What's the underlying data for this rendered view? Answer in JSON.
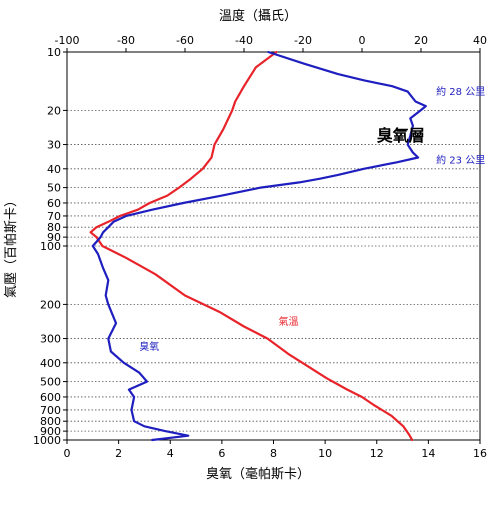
{
  "chart_data": {
    "type": "line",
    "top_axis": {
      "title": "溫度（攝氏）",
      "range": [
        -100,
        40
      ],
      "ticks": [
        -100,
        -80,
        -60,
        -40,
        -20,
        0,
        20,
        40
      ]
    },
    "bottom_axis": {
      "title": "臭氧（毫帕斯卡）",
      "range": [
        0,
        16
      ],
      "ticks": [
        0,
        2,
        4,
        6,
        8,
        10,
        12,
        14,
        16
      ]
    },
    "left_axis": {
      "title": "氣壓（百帕斯卡）",
      "scale": "log",
      "inverted": true,
      "range": [
        10,
        1000
      ],
      "ticks": [
        10,
        20,
        30,
        40,
        50,
        60,
        70,
        80,
        90,
        100,
        200,
        300,
        400,
        500,
        600,
        700,
        800,
        900,
        1000
      ]
    },
    "grid": "horizontal dotted lines at pressure ticks",
    "series": [
      {
        "name": "氣溫",
        "color": "#e8232a",
        "x_axis": "top",
        "points": [
          [
            -29,
            10
          ],
          [
            -36,
            12
          ],
          [
            -40,
            15
          ],
          [
            -43,
            18
          ],
          [
            -44,
            20
          ],
          [
            -47,
            25
          ],
          [
            -50,
            30
          ],
          [
            -51,
            35
          ],
          [
            -54,
            40
          ],
          [
            -58,
            45
          ],
          [
            -62,
            50
          ],
          [
            -66,
            55
          ],
          [
            -72,
            60
          ],
          [
            -76,
            65
          ],
          [
            -82,
            70
          ],
          [
            -86,
            75
          ],
          [
            -90,
            80
          ],
          [
            -92,
            85
          ],
          [
            -90,
            90
          ],
          [
            -88,
            100
          ],
          [
            -80,
            115
          ],
          [
            -70,
            140
          ],
          [
            -60,
            180
          ],
          [
            -48,
            220
          ],
          [
            -40,
            260
          ],
          [
            -32,
            300
          ],
          [
            -25,
            360
          ],
          [
            -18,
            420
          ],
          [
            -12,
            480
          ],
          [
            -5,
            550
          ],
          [
            0,
            600
          ],
          [
            4,
            660
          ],
          [
            10,
            750
          ],
          [
            14,
            850
          ],
          [
            16,
            940
          ],
          [
            17,
            1000
          ]
        ]
      },
      {
        "name": "臭氧",
        "color": "#1f1fbf",
        "x_axis": "bottom",
        "points": [
          [
            7.8,
            10
          ],
          [
            9.2,
            11.5
          ],
          [
            10.5,
            13
          ],
          [
            11.5,
            14
          ],
          [
            12.6,
            15
          ],
          [
            13.2,
            16
          ],
          [
            13.5,
            18
          ],
          [
            13.9,
            19
          ],
          [
            13.7,
            20
          ],
          [
            13.3,
            22
          ],
          [
            13.4,
            24
          ],
          [
            13.3,
            27
          ],
          [
            13.2,
            30
          ],
          [
            13.4,
            33
          ],
          [
            13.6,
            35
          ],
          [
            12.8,
            37
          ],
          [
            11.5,
            40
          ],
          [
            10.5,
            43
          ],
          [
            9.8,
            45
          ],
          [
            9.0,
            47
          ],
          [
            7.5,
            50
          ],
          [
            6.0,
            55
          ],
          [
            4.5,
            60
          ],
          [
            3.3,
            65
          ],
          [
            2.3,
            70
          ],
          [
            1.8,
            75
          ],
          [
            1.6,
            80
          ],
          [
            1.4,
            85
          ],
          [
            1.3,
            90
          ],
          [
            1.0,
            100
          ],
          [
            1.2,
            110
          ],
          [
            1.4,
            130
          ],
          [
            1.6,
            150
          ],
          [
            1.5,
            180
          ],
          [
            1.6,
            200
          ],
          [
            1.9,
            250
          ],
          [
            1.6,
            300
          ],
          [
            1.7,
            350
          ],
          [
            2.2,
            400
          ],
          [
            2.8,
            450
          ],
          [
            3.1,
            500
          ],
          [
            2.4,
            550
          ],
          [
            2.6,
            600
          ],
          [
            2.5,
            700
          ],
          [
            2.6,
            800
          ],
          [
            3.0,
            850
          ],
          [
            3.8,
            900
          ],
          [
            4.7,
            950
          ],
          [
            3.3,
            1000
          ]
        ]
      }
    ],
    "annotations": [
      {
        "text": "臭氧層",
        "x_ozone": 12.0,
        "p": 27,
        "size": "large",
        "color": "#000000"
      },
      {
        "text": "約 28 公里",
        "x_ozone": 14.3,
        "p": 16,
        "size": "small",
        "color": "#1f1fbf"
      },
      {
        "text": "約 23 公里",
        "x_ozone": 14.3,
        "p": 36,
        "size": "small",
        "color": "#1f1fbf"
      },
      {
        "text": "氣溫",
        "x_ozone": 8.2,
        "p": 245,
        "size": "small",
        "color": "#e8232a"
      },
      {
        "text": "臭氧",
        "x_ozone": 2.8,
        "p": 330,
        "size": "small",
        "color": "#1f1fbf"
      }
    ]
  }
}
